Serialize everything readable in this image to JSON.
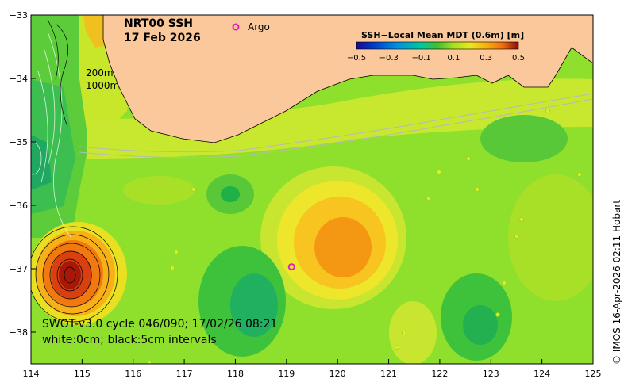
{
  "map": {
    "title_line1": "NRT00 SSH",
    "title_line2": "17 Feb 2026",
    "argo_symbol": "o",
    "argo_label": "Argo",
    "isobath_200": "200m",
    "isobath_1000": "1000m",
    "info_line1": "SWOT-v3.0 cycle 046/090; 17/02/26 08:21",
    "info_line2": "white:0cm; black:5cm intervals",
    "credit": "© IMOS 16-Apr-2026 02:11 Hobart",
    "x_ticks": [
      "114",
      "115",
      "116",
      "117",
      "118",
      "119",
      "120",
      "121",
      "122",
      "123",
      "124",
      "125"
    ],
    "y_ticks": [
      "−33",
      "−34",
      "−35",
      "−36",
      "−37",
      "−38"
    ],
    "lon_range": [
      114,
      125
    ],
    "lat_range": [
      -33,
      -38.5
    ],
    "argo_floats": [
      {
        "lon": 119.1,
        "lat": -36.97
      }
    ],
    "colors": {
      "land": "#fac89a",
      "ocean_base": "#8ee02c",
      "argo": "#e020c0"
    }
  },
  "colorbar": {
    "label": "SSH−Local Mean MDT (0.6m) [m]",
    "ticks": [
      "−0.5",
      "−0.3",
      "−0.1",
      "0.1",
      "0.3",
      "0.5"
    ],
    "range": [
      -0.5,
      0.5
    ],
    "colors": [
      "#1a0a8a",
      "#0038c8",
      "#0090e0",
      "#00c8a0",
      "#20b040",
      "#60d020",
      "#a8e020",
      "#e8e820",
      "#f8b010",
      "#f07010",
      "#d02010",
      "#900808"
    ]
  }
}
